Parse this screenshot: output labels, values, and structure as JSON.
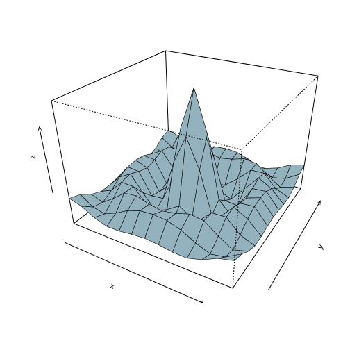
{
  "chart_data": {
    "type": "surface",
    "xlabel": "x",
    "ylabel": "y",
    "zlabel": "z",
    "x": [
      -10,
      -8.33,
      -6.67,
      -5,
      -3.33,
      -1.67,
      0,
      1.67,
      3.33,
      5,
      6.67,
      8.33,
      10
    ],
    "y": [
      -10,
      -8.33,
      -6.67,
      -5,
      -3.33,
      -1.67,
      0,
      1.67,
      3.33,
      5,
      6.67,
      8.33,
      10
    ],
    "z": [
      [
        0.71,
        0.33,
        -0.43,
        -0.88,
        -0.85,
        -0.65,
        -0.54,
        -0.65,
        -0.85,
        -0.88,
        -0.43,
        0.33,
        0.71
      ],
      [
        0.33,
        -0.6,
        -0.89,
        -0.3,
        0.48,
        0.94,
        1.06,
        0.94,
        0.48,
        -0.3,
        -0.89,
        -0.6,
        0.33
      ],
      [
        -0.43,
        -0.89,
        0,
        1.06,
        1.24,
        0.81,
        0.56,
        0.81,
        1.24,
        1.06,
        0,
        -0.89,
        -0.43
      ],
      [
        -0.88,
        -0.3,
        1.06,
        1,
        -0.45,
        -1.61,
        -1.92,
        -1.61,
        -0.45,
        1,
        1.06,
        -0.3,
        -0.88
      ],
      [
        -0.85,
        0.48,
        1.24,
        -0.45,
        -2.12,
        -1.48,
        -0.57,
        -1.48,
        -2.12,
        -0.45,
        1.24,
        0.48,
        -0.85
      ],
      [
        -0.65,
        0.94,
        0.81,
        -1.61,
        -1.48,
        3,
        5.97,
        3,
        -1.48,
        -1.61,
        0.81,
        0.94,
        -0.65
      ],
      [
        -0.54,
        1.06,
        0.56,
        -1.92,
        -0.57,
        5.97,
        10,
        5.97,
        -0.57,
        -1.92,
        0.56,
        1.06,
        -0.54
      ],
      [
        -0.65,
        0.94,
        0.81,
        -1.61,
        -1.48,
        3,
        5.97,
        3,
        -1.48,
        -1.61,
        0.81,
        0.94,
        -0.65
      ],
      [
        -0.85,
        0.48,
        1.24,
        -0.45,
        -2.12,
        -1.48,
        -0.57,
        -1.48,
        -2.12,
        -0.45,
        1.24,
        0.48,
        -0.85
      ],
      [
        -0.88,
        -0.3,
        1.06,
        1,
        -0.45,
        -1.61,
        -1.92,
        -1.61,
        -0.45,
        1,
        1.06,
        -0.3,
        -0.88
      ],
      [
        -0.43,
        -0.89,
        0,
        1.06,
        1.24,
        0.81,
        0.56,
        0.81,
        1.24,
        1.06,
        0,
        -0.89,
        -0.43
      ],
      [
        0.33,
        -0.6,
        -0.89,
        -0.3,
        0.48,
        0.94,
        1.06,
        0.94,
        0.48,
        -0.3,
        -0.89,
        -0.6,
        0.33
      ],
      [
        0.71,
        0.33,
        -0.43,
        -0.88,
        -0.85,
        -0.65,
        -0.54,
        -0.65,
        -0.85,
        -0.88,
        -0.43,
        0.33,
        0.71
      ]
    ],
    "xlim": [
      -10,
      10
    ],
    "ylim": [
      -10,
      10
    ],
    "zlim": [
      -2.12,
      10
    ],
    "theta": 30,
    "phi": 30,
    "color": "#94b2be"
  }
}
